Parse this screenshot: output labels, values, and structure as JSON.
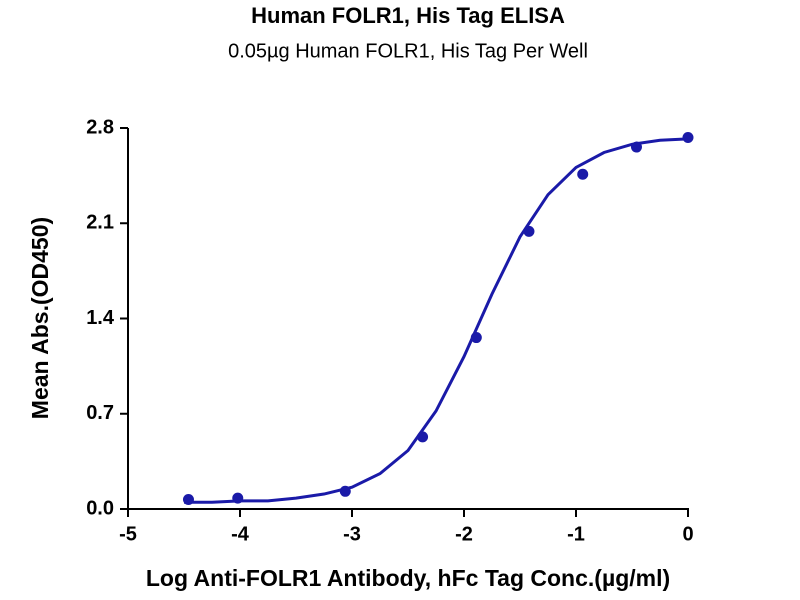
{
  "chart_data": {
    "type": "scatter",
    "title": "Human FOLR1, His Tag ELISA",
    "subtitle": "0.05µg Human FOLR1, His Tag Per Well",
    "x_label": "Log Anti-FOLR1 Antibody, hFc Tag Conc.(µg/ml)",
    "y_label": "Mean Abs.(OD450)",
    "color": "#1a1aa8",
    "x": [
      -4.46,
      -4.02,
      -3.06,
      -2.37,
      -1.89,
      -1.42,
      -0.94,
      -0.46,
      0.0
    ],
    "values": [
      0.07,
      0.08,
      0.13,
      0.53,
      1.26,
      2.04,
      2.46,
      2.66,
      2.73
    ],
    "fit": {
      "x": [
        -4.5,
        -4.25,
        -4.0,
        -3.75,
        -3.5,
        -3.25,
        -3.0,
        -2.75,
        -2.5,
        -2.25,
        -2.0,
        -1.75,
        -1.5,
        -1.25,
        -1.0,
        -0.75,
        -0.5,
        -0.25,
        0.0
      ],
      "values": [
        0.05,
        0.05,
        0.06,
        0.06,
        0.08,
        0.11,
        0.16,
        0.26,
        0.43,
        0.72,
        1.12,
        1.58,
        2.0,
        2.31,
        2.51,
        2.62,
        2.68,
        2.71,
        2.72
      ]
    },
    "xlim": [
      -5,
      0
    ],
    "xticks": [
      -5,
      -4,
      -3,
      -2,
      -1,
      0
    ],
    "ylim": [
      0,
      2.8
    ],
    "yticks": [
      {
        "value": 0,
        "label": "0.0"
      },
      0.7,
      1.4,
      2.1,
      2.8
    ]
  }
}
